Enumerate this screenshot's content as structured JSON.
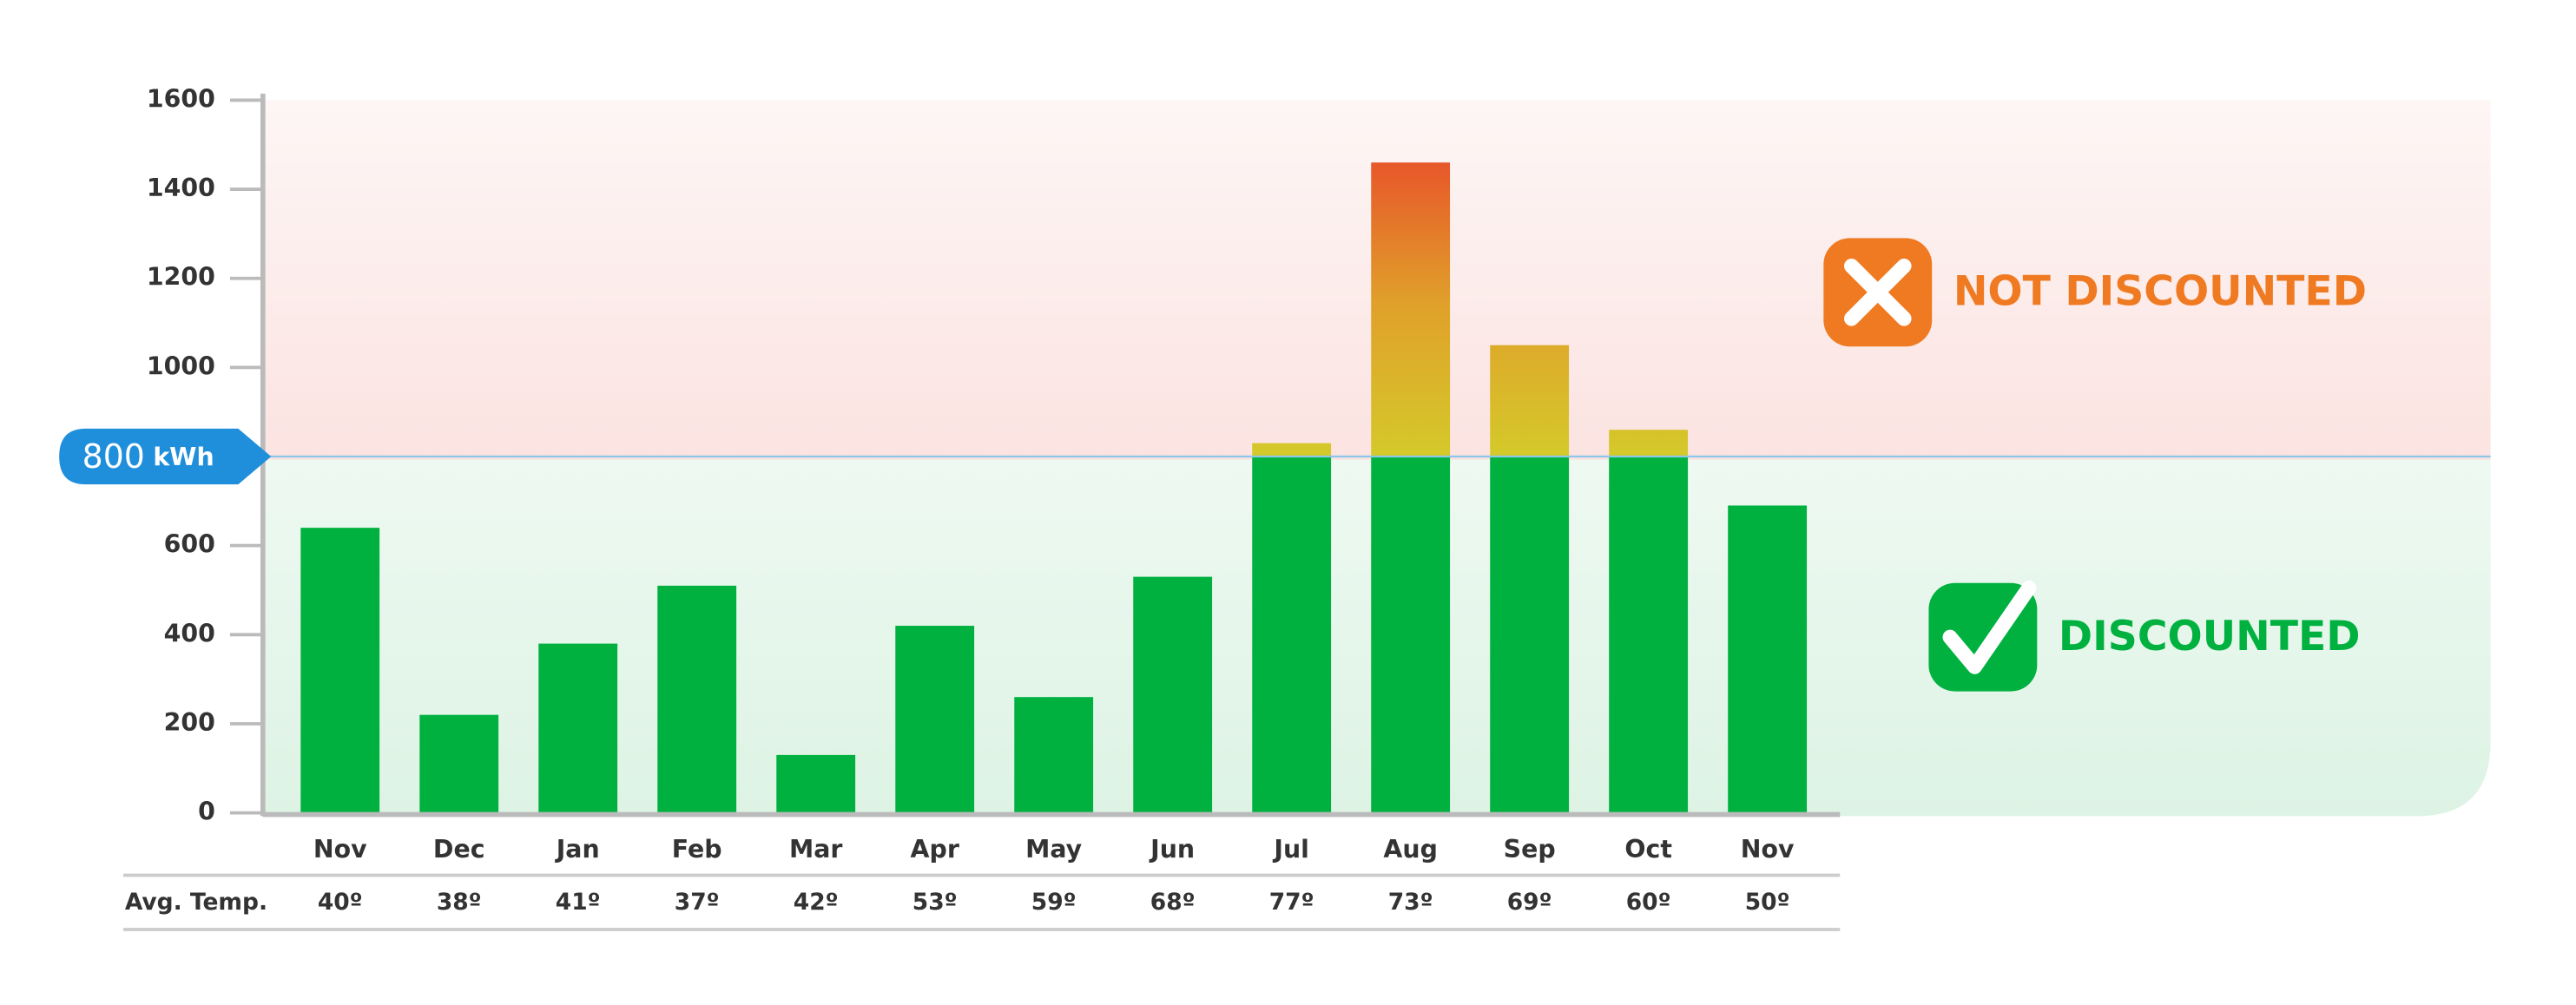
{
  "chart_data": {
    "type": "stacked_bar",
    "categories": [
      "Nov",
      "Dec",
      "Jan",
      "Feb",
      "Mar",
      "Apr",
      "May",
      "Jun",
      "Jul",
      "Aug",
      "Sep",
      "Oct",
      "Nov"
    ],
    "series": [
      {
        "name": "DISCOUNTED",
        "color": "#00b140",
        "values": [
          640,
          220,
          380,
          510,
          130,
          420,
          260,
          530,
          800,
          800,
          800,
          800,
          690
        ]
      },
      {
        "name": "NOT DISCOUNTED",
        "color": "#f07a22",
        "values": [
          null,
          null,
          null,
          null,
          null,
          null,
          null,
          null,
          30,
          660,
          250,
          60,
          null
        ]
      }
    ],
    "ylim": [
      0,
      1600
    ],
    "yticks": [
      0,
      200,
      400,
      600,
      1000,
      1200,
      1400,
      1600
    ],
    "threshold": {
      "value": 800,
      "label": "800",
      "unit": "kWh",
      "color": "#1f8fdc"
    },
    "temperature_row": {
      "label": "Avg. Temp.",
      "values": [
        "40º",
        "38º",
        "41º",
        "37º",
        "42º",
        "53º",
        "59º",
        "68º",
        "77º",
        "73º",
        "69º",
        "60º",
        "50º"
      ]
    }
  }
}
